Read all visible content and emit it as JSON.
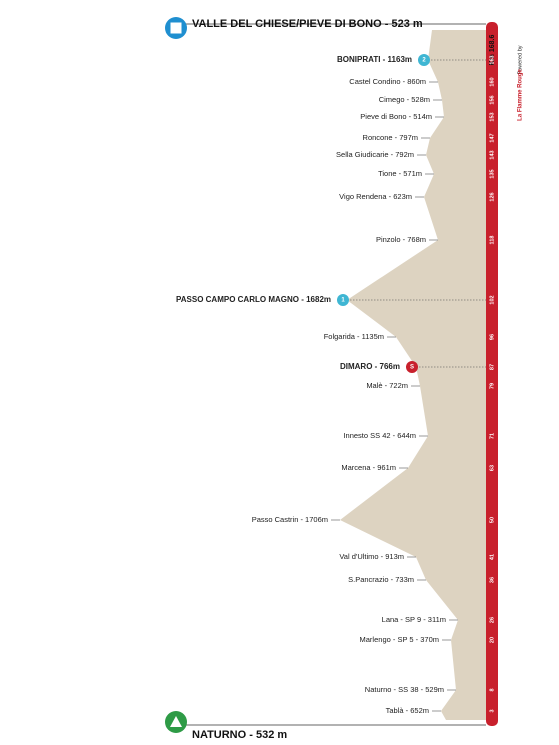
{
  "finish": {
    "label": "VALLE DEL CHIESE/PIEVE DI BONO - 523 m"
  },
  "start": {
    "label": "NATURNO - 532 m"
  },
  "total": "Km 168.6",
  "powered": {
    "by": "Powered by",
    "brand": "La Flamme Rouge"
  },
  "waypoints": [
    {
      "label": "BONIPRATI - 1163m",
      "km": "163",
      "badge": "2"
    },
    {
      "label": "Castel Condino - 860m",
      "km": "160"
    },
    {
      "label": "Cimego - 528m",
      "km": "156"
    },
    {
      "label": "Pieve di Bono - 514m",
      "km": "153"
    },
    {
      "label": "Roncone - 797m",
      "km": "147"
    },
    {
      "label": "Sella Giudicarie - 792m",
      "km": "143"
    },
    {
      "label": "Tione - 571m",
      "km": "135"
    },
    {
      "label": "Vigo Rendena - 623m",
      "km": "126"
    },
    {
      "label": "Pinzolo - 768m",
      "km": "118"
    },
    {
      "label": "PASSO CAMPO CARLO MAGNO - 1682m",
      "km": "102",
      "badge": "1"
    },
    {
      "label": "Folgarida - 1135m",
      "km": "96"
    },
    {
      "label": "DIMARO - 766m",
      "km": "87",
      "badge": "S"
    },
    {
      "label": "Malè - 722m",
      "km": "79"
    },
    {
      "label": "Innesto SS 42 - 644m",
      "km": "71"
    },
    {
      "label": "Marcena - 961m",
      "km": "63"
    },
    {
      "label": "Passo Castrin - 1706m",
      "km": "50"
    },
    {
      "label": "Val d'Ultimo - 913m",
      "km": "41"
    },
    {
      "label": "S.Pancrazio - 733m",
      "km": "36"
    },
    {
      "label": "Lana - SP 9 - 311m",
      "km": "26"
    },
    {
      "label": "Marlengo - SP 5 - 370m",
      "km": "20"
    },
    {
      "label": "Naturno - SS 38 - 529m",
      "km": "8"
    },
    {
      "label": "Tablà - 652m",
      "km": "3"
    }
  ]
}
